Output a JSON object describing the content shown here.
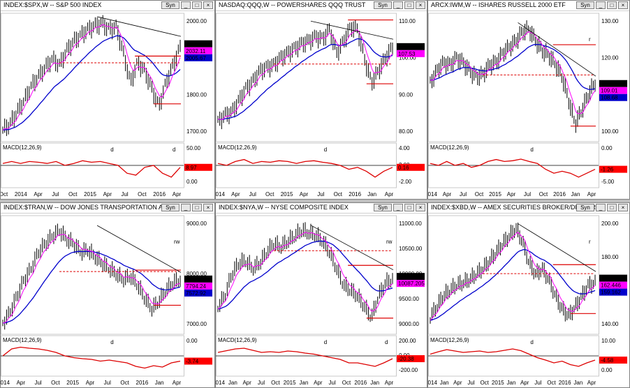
{
  "colors": {
    "price": "#000000",
    "ma_fast": "#ff00ff",
    "ma_slow": "#0000cc",
    "macd": "#dd0000",
    "level": "#dd0000",
    "trend": "#000000"
  },
  "buttons": {
    "sync": "Syn",
    "min": "_",
    "max": "□",
    "close": "×"
  },
  "panels": [
    {
      "title": "INDEX:$SPX,W -- S&P 500 INDEX",
      "price_axis": [
        "2000.00",
        "1900.00",
        "1800.00",
        "1700.00"
      ],
      "badges": [
        "2080.73",
        "2032.11",
        "2005.67"
      ],
      "macd_title": "MACD(12,26,9)",
      "macd_axis": [
        "50.00",
        "0.00"
      ],
      "macd_badge": "8.97",
      "x_labels": [
        "Oct",
        "2014",
        "Apr",
        "Jul",
        "Oct",
        "2015",
        "Apr",
        "Jul",
        "Oct",
        "2016",
        "Apr"
      ],
      "marks": [
        "d",
        "d"
      ]
    },
    {
      "title": "NASDAQ:QQQ,W -- POWERSHARES QQQ TRUST",
      "price_axis": [
        "110.00",
        "100.00",
        "90.00",
        "80.00"
      ],
      "badges": [
        "110.64",
        "107.53"
      ],
      "macd_title": "MACD(12,26,9)",
      "macd_axis": [
        "4.00",
        "2.00",
        "-2.00"
      ],
      "macd_badge": "0.16",
      "x_labels": [
        "2014",
        "Apr",
        "Jul",
        "Oct",
        "2015",
        "Apr",
        "Jul",
        "Oct",
        "2016",
        "Jan",
        "Apr"
      ],
      "marks": [
        "d"
      ]
    },
    {
      "title": "ARCX:IWM,W -- ISHARES RUSSELL 2000 ETF",
      "price_axis": [
        "130.00",
        "120.00",
        "110.00",
        "100.00"
      ],
      "badges": [
        "112.45",
        "109.01",
        "108.68"
      ],
      "macd_title": "MACD(12,26,9)",
      "macd_axis": [
        "0.00",
        "-5.00"
      ],
      "macd_badge": "-1.26",
      "x_labels": [
        "2014",
        "Apr",
        "Jul",
        "Oct",
        "2015",
        "Apr",
        "Jul",
        "Oct",
        "2016",
        "Jan",
        "Apr"
      ],
      "marks": [
        "r",
        "d"
      ]
    },
    {
      "title": "INDEX:$TRAN,W -- DOW JONES TRANSPORTATION AVERA",
      "price_axis": [
        "9000.00",
        "8000.00",
        "7000.00"
      ],
      "badges": [
        "7978.23",
        "7794.24",
        "7572.92"
      ],
      "macd_title": "MACD(12,26,9)",
      "macd_axis": [
        "0.00"
      ],
      "macd_badge": "-3.74",
      "x_labels": [
        "2014",
        "Apr",
        "Jul",
        "Oct",
        "2015",
        "Apr",
        "Jul",
        "Oct",
        "2016",
        "Jan",
        "Apr"
      ],
      "marks": [
        "rw",
        "d"
      ]
    },
    {
      "title": "INDEX:$NYA,W -- NYSE COMPOSITE INDEX",
      "price_axis": [
        "11000.00",
        "10500.00",
        "10000.00",
        "9500.00",
        "9000.00"
      ],
      "badges": [
        "10355.565",
        "10087.205"
      ],
      "macd_title": "MACD(12,26,9)",
      "macd_axis": [
        "200.00",
        "0.00",
        "-200.00"
      ],
      "macd_badge": "-20.38",
      "x_labels": [
        "2014",
        "Jan",
        "Apr",
        "Jul",
        "Oct",
        "2015",
        "Jan",
        "Apr",
        "Jul",
        "Oct",
        "2016",
        "Jan",
        "Apr"
      ],
      "marks": [
        "rw",
        "d",
        "d"
      ]
    },
    {
      "title": "INDEX:$XBD,W -- AMEX SECURITIES BROKER/DEALER",
      "price_axis": [
        "200.00",
        "180.00",
        "160.00",
        "140.00"
      ],
      "badges": [
        "165.967",
        "162.446",
        "159.162"
      ],
      "macd_title": "MACD(12,26,9)",
      "macd_axis": [
        "10.00",
        "0.00"
      ],
      "macd_badge": "-4.58",
      "x_labels": [
        "2014",
        "Jan",
        "Apr",
        "Jul",
        "Oct",
        "2015",
        "Jan",
        "Apr",
        "Jul",
        "Oct",
        "2016",
        "Jan",
        "Apr"
      ],
      "marks": [
        "r",
        "d"
      ]
    }
  ]
}
